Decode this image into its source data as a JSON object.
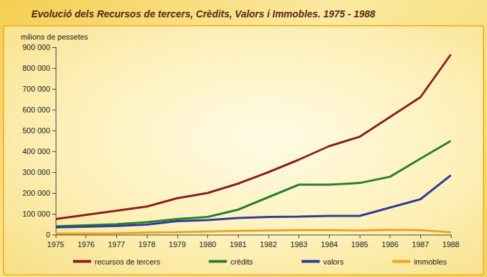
{
  "chart_data": {
    "type": "line",
    "title": "Evolució dels Recursos de tercers, Crèdits, Valors i Immobles. 1975 - 1988",
    "y_label": "milions de pessetes",
    "categories": [
      "1975",
      "1976",
      "1977",
      "1978",
      "1979",
      "1980",
      "1981",
      "1982",
      "1983",
      "1984",
      "1985",
      "1986",
      "1987",
      "1988"
    ],
    "series": [
      {
        "name": "recursos de tercers",
        "color": "#8b1c1c",
        "values": [
          75000,
          95000,
          115000,
          135000,
          175000,
          200000,
          245000,
          300000,
          360000,
          425000,
          470000,
          565000,
          660000,
          865000
        ]
      },
      {
        "name": "crèdits",
        "color": "#2a7d2e",
        "values": [
          40000,
          45000,
          50000,
          60000,
          75000,
          85000,
          120000,
          180000,
          240000,
          240000,
          248000,
          278000,
          365000,
          450000
        ]
      },
      {
        "name": "valors",
        "color": "#2b3a9a",
        "values": [
          35000,
          38000,
          42000,
          48000,
          65000,
          70000,
          80000,
          85000,
          87000,
          90000,
          90000,
          130000,
          170000,
          285000
        ]
      },
      {
        "name": "immobles",
        "color": "#f0a322",
        "values": [
          5000,
          6000,
          7000,
          10000,
          12000,
          15000,
          18000,
          20000,
          22000,
          22000,
          20000,
          23000,
          22000,
          12000
        ]
      }
    ],
    "ylim": [
      0,
      900000
    ],
    "yticks": [
      0,
      {
        "value": 100000,
        "label": "100 000"
      },
      {
        "value": 200000,
        "label": "200 000"
      },
      {
        "value": 300000,
        "label": "300 000"
      },
      {
        "value": 400000,
        "label": "400 000"
      },
      {
        "value": 500000,
        "label": "500 000"
      },
      {
        "value": 600000,
        "label": "600 000"
      },
      {
        "value": 700000,
        "label": "700 000"
      },
      {
        "value": 800000,
        "label": "800 000"
      },
      {
        "value": 900000,
        "label": "900 000"
      }
    ],
    "grid": false,
    "legend": "bottom"
  }
}
